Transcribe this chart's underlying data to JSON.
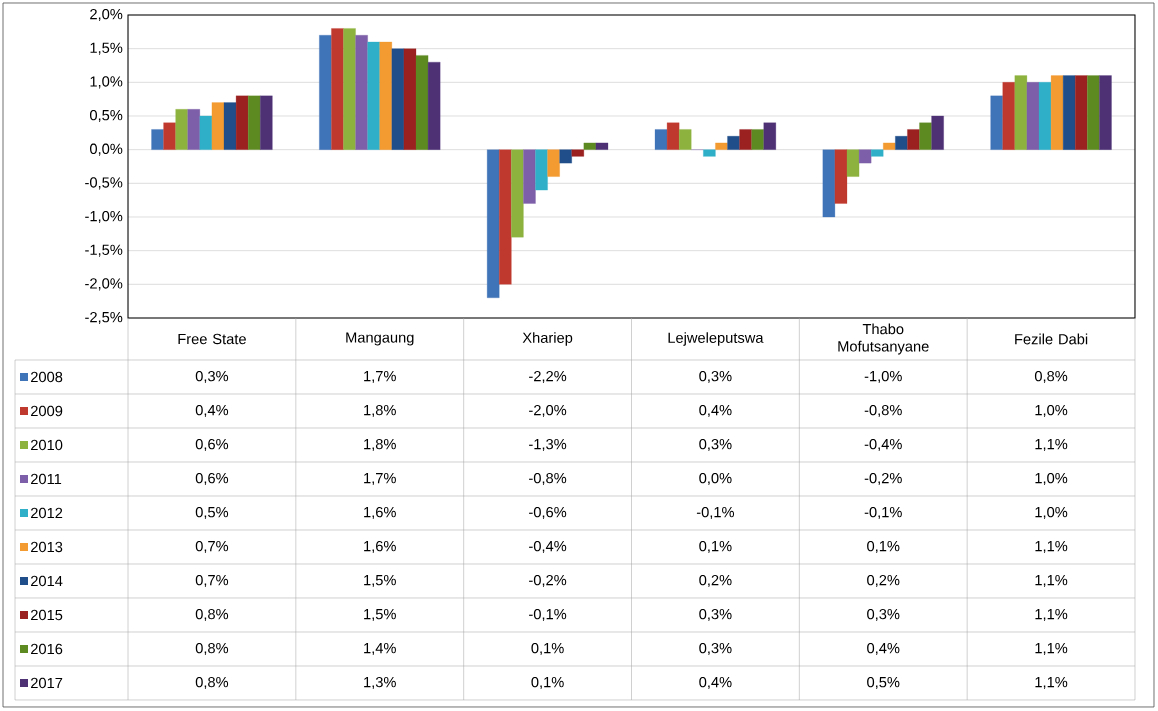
{
  "chart_data": {
    "type": "bar",
    "categories": [
      "Free State",
      "Mangaung",
      "Xhariep",
      "Lejweleputswa",
      "Thabo Mofutsanyane",
      "Fezile Dabi"
    ],
    "series": [
      {
        "name": "2008",
        "color": "#3f74b8",
        "values": [
          0.3,
          1.7,
          -2.2,
          0.3,
          -1.0,
          0.8
        ],
        "value_labels": [
          "0,3%",
          "1,7%",
          "-2,2%",
          "0,3%",
          "-1,0%",
          "0,8%"
        ]
      },
      {
        "name": "2009",
        "color": "#c0392f",
        "values": [
          0.4,
          1.8,
          -2.0,
          0.4,
          -0.8,
          1.0
        ],
        "value_labels": [
          "0,4%",
          "1,8%",
          "-2,0%",
          "0,4%",
          "-0,8%",
          "1,0%"
        ]
      },
      {
        "name": "2010",
        "color": "#8db33e",
        "values": [
          0.6,
          1.8,
          -1.3,
          0.3,
          -0.4,
          1.1
        ],
        "value_labels": [
          "0,6%",
          "1,8%",
          "-1,3%",
          "0,3%",
          "-0,4%",
          "1,1%"
        ]
      },
      {
        "name": "2011",
        "color": "#7d5ea8",
        "values": [
          0.6,
          1.7,
          -0.8,
          0.0,
          -0.2,
          1.0
        ],
        "value_labels": [
          "0,6%",
          "1,7%",
          "-0,8%",
          "0,0%",
          "-0,2%",
          "1,0%"
        ]
      },
      {
        "name": "2012",
        "color": "#2fb0c8",
        "values": [
          0.5,
          1.6,
          -0.6,
          -0.1,
          -0.1,
          1.0
        ],
        "value_labels": [
          "0,5%",
          "1,6%",
          "-0,6%",
          "-0,1%",
          "-0,1%",
          "1,0%"
        ]
      },
      {
        "name": "2013",
        "color": "#f39a30",
        "values": [
          0.7,
          1.6,
          -0.4,
          0.1,
          0.1,
          1.1
        ],
        "value_labels": [
          "0,7%",
          "1,6%",
          "-0,4%",
          "0,1%",
          "0,1%",
          "1,1%"
        ]
      },
      {
        "name": "2014",
        "color": "#1f4e8a",
        "values": [
          0.7,
          1.5,
          -0.2,
          0.2,
          0.2,
          1.1
        ],
        "value_labels": [
          "0,7%",
          "1,5%",
          "-0,2%",
          "0,2%",
          "0,2%",
          "1,1%"
        ]
      },
      {
        "name": "2015",
        "color": "#9b2020",
        "values": [
          0.8,
          1.5,
          -0.1,
          0.3,
          0.3,
          1.1
        ],
        "value_labels": [
          "0,8%",
          "1,5%",
          "-0,1%",
          "0,3%",
          "0,3%",
          "1,1%"
        ]
      },
      {
        "name": "2016",
        "color": "#5e8a22",
        "values": [
          0.8,
          1.4,
          0.1,
          0.3,
          0.4,
          1.1
        ],
        "value_labels": [
          "0,8%",
          "1,4%",
          "0,1%",
          "0,3%",
          "0,4%",
          "1,1%"
        ]
      },
      {
        "name": "2017",
        "color": "#4e3075",
        "values": [
          0.8,
          1.3,
          0.1,
          0.4,
          0.5,
          1.1
        ],
        "value_labels": [
          "0,8%",
          "1,3%",
          "0,1%",
          "0,4%",
          "0,5%",
          "1,1%"
        ]
      }
    ],
    "ylim": [
      -2.5,
      2.0
    ],
    "yticks": [
      {
        "value": -2.5,
        "label": "-2,5%"
      },
      {
        "value": -2.0,
        "label": "-2,0%"
      },
      {
        "value": -1.5,
        "label": "-1,5%"
      },
      {
        "value": -1.0,
        "label": "-1,0%"
      },
      {
        "value": -0.5,
        "label": "-0,5%"
      },
      {
        "value": 0.0,
        "label": "0,0%"
      },
      {
        "value": 0.5,
        "label": "0,5%"
      },
      {
        "value": 1.0,
        "label": "1,0%"
      },
      {
        "value": 1.5,
        "label": "1,5%"
      },
      {
        "value": 2.0,
        "label": "2,0%"
      }
    ],
    "grid": "y",
    "legend": "bottom left"
  }
}
